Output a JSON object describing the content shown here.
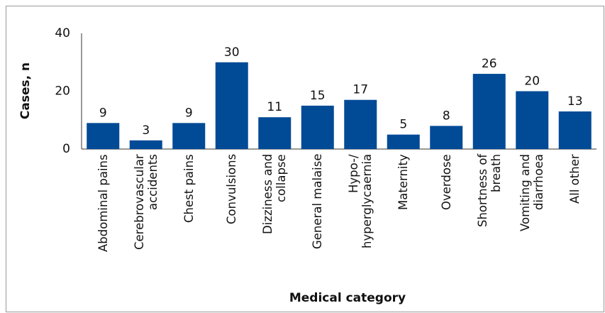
{
  "chart_data": {
    "type": "bar",
    "y_label": "Cases, n",
    "x_label": "Medical category",
    "categories": [
      "Abdominal pains",
      "Cerebrovascular\naccidents",
      "Chest pains",
      "Convulsions",
      "Dizziness and\ncollapse",
      "General malaise",
      "Hypo-/\nhyperglycaernia",
      "Maternity",
      "Overdose",
      "Shortness of\nbreath",
      "Vomiting and\ndiarrhoea",
      "All other"
    ],
    "values": [
      9,
      3,
      9,
      30,
      11,
      15,
      17,
      5,
      8,
      26,
      20,
      13
    ],
    "color": "#004a96",
    "ylim": [
      0,
      40
    ],
    "yticks": [
      0,
      20,
      40
    ],
    "grid": false
  }
}
